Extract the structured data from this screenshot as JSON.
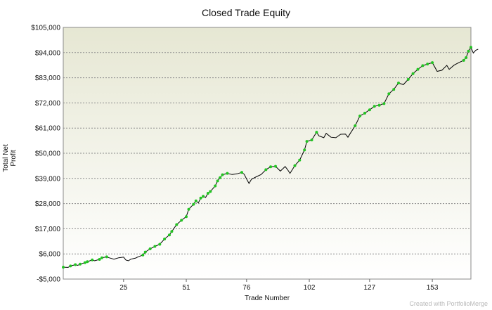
{
  "chart_data": {
    "type": "line",
    "title": "Closed Trade Equity",
    "xlabel": "Trade Number",
    "ylabel": "Total Net Profit",
    "xlim": [
      0,
      169
    ],
    "ylim": [
      -5000,
      105000
    ],
    "x_ticks": [
      25,
      51,
      76,
      102,
      127,
      153
    ],
    "y_ticks": [
      -5000,
      6000,
      17000,
      28000,
      39000,
      50000,
      61000,
      72000,
      83000,
      94000,
      105000
    ],
    "y_tick_labels": [
      "-$5,000",
      "$6,000",
      "$17,000",
      "$28,000",
      "$39,000",
      "$50,000",
      "$61,000",
      "$72,000",
      "$83,000",
      "$94,000",
      "$105,000"
    ],
    "grid": "horizontal dotted",
    "background": "gradient olive-beige to white",
    "markers": "green dots mark new equity highs",
    "line_color": "#000000",
    "marker_color": "#22c422",
    "series": [
      {
        "values": [
          [
            0,
            200
          ],
          [
            2,
            100
          ],
          [
            3,
            700
          ],
          [
            5,
            1300
          ],
          [
            6,
            1000
          ],
          [
            7,
            1500
          ],
          [
            9,
            2200
          ],
          [
            10,
            2600
          ],
          [
            12,
            3400
          ],
          [
            13,
            3000
          ],
          [
            15,
            3600
          ],
          [
            16,
            4300
          ],
          [
            18,
            4700
          ],
          [
            19,
            4300
          ],
          [
            20,
            4000
          ],
          [
            21,
            3700
          ],
          [
            23,
            4300
          ],
          [
            25,
            4600
          ],
          [
            26,
            3300
          ],
          [
            27,
            3000
          ],
          [
            28,
            3700
          ],
          [
            30,
            4200
          ],
          [
            31,
            4700
          ],
          [
            33,
            5500
          ],
          [
            34,
            6800
          ],
          [
            36,
            8200
          ],
          [
            38,
            9300
          ],
          [
            40,
            10200
          ],
          [
            42,
            12500
          ],
          [
            44,
            14300
          ],
          [
            45,
            15800
          ],
          [
            47,
            18800
          ],
          [
            49,
            20700
          ],
          [
            51,
            22300
          ],
          [
            52,
            25500
          ],
          [
            54,
            27700
          ],
          [
            55,
            29200
          ],
          [
            56,
            28300
          ],
          [
            57,
            30400
          ],
          [
            58,
            31200
          ],
          [
            59,
            30700
          ],
          [
            60,
            32500
          ],
          [
            61,
            33300
          ],
          [
            63,
            35700
          ],
          [
            64,
            37900
          ],
          [
            65,
            39300
          ],
          [
            66,
            40600
          ],
          [
            68,
            41200
          ],
          [
            70,
            40700
          ],
          [
            72,
            41000
          ],
          [
            74,
            41600
          ],
          [
            75,
            40800
          ],
          [
            76,
            38800
          ],
          [
            77,
            36800
          ],
          [
            78,
            38600
          ],
          [
            80,
            39700
          ],
          [
            82,
            40700
          ],
          [
            84,
            42800
          ],
          [
            86,
            44100
          ],
          [
            88,
            44300
          ],
          [
            90,
            42200
          ],
          [
            92,
            44200
          ],
          [
            93,
            42800
          ],
          [
            94,
            41200
          ],
          [
            96,
            44600
          ],
          [
            98,
            47000
          ],
          [
            100,
            51400
          ],
          [
            101,
            55200
          ],
          [
            103,
            55800
          ],
          [
            105,
            59200
          ],
          [
            106,
            57600
          ],
          [
            108,
            56800
          ],
          [
            109,
            58700
          ],
          [
            111,
            57000
          ],
          [
            113,
            56800
          ],
          [
            115,
            58300
          ],
          [
            117,
            58400
          ],
          [
            118,
            57000
          ],
          [
            119,
            58700
          ],
          [
            121,
            62000
          ],
          [
            123,
            66300
          ],
          [
            125,
            67500
          ],
          [
            127,
            69000
          ],
          [
            129,
            70500
          ],
          [
            131,
            71000
          ],
          [
            133,
            71700
          ],
          [
            135,
            76000
          ],
          [
            137,
            77900
          ],
          [
            139,
            80700
          ],
          [
            141,
            80000
          ],
          [
            143,
            82300
          ],
          [
            145,
            84800
          ],
          [
            147,
            86700
          ],
          [
            149,
            88300
          ],
          [
            151,
            89000
          ],
          [
            153,
            89600
          ],
          [
            155,
            85800
          ],
          [
            157,
            86300
          ],
          [
            159,
            88400
          ],
          [
            160,
            86700
          ],
          [
            162,
            88500
          ],
          [
            164,
            89600
          ],
          [
            166,
            90600
          ],
          [
            167,
            91800
          ],
          [
            168,
            94600
          ],
          [
            169,
            96300
          ],
          [
            170,
            93800
          ],
          [
            171,
            95000
          ],
          [
            172,
            95500
          ]
        ]
      }
    ]
  },
  "watermark": "Created with PortfolioMerge"
}
